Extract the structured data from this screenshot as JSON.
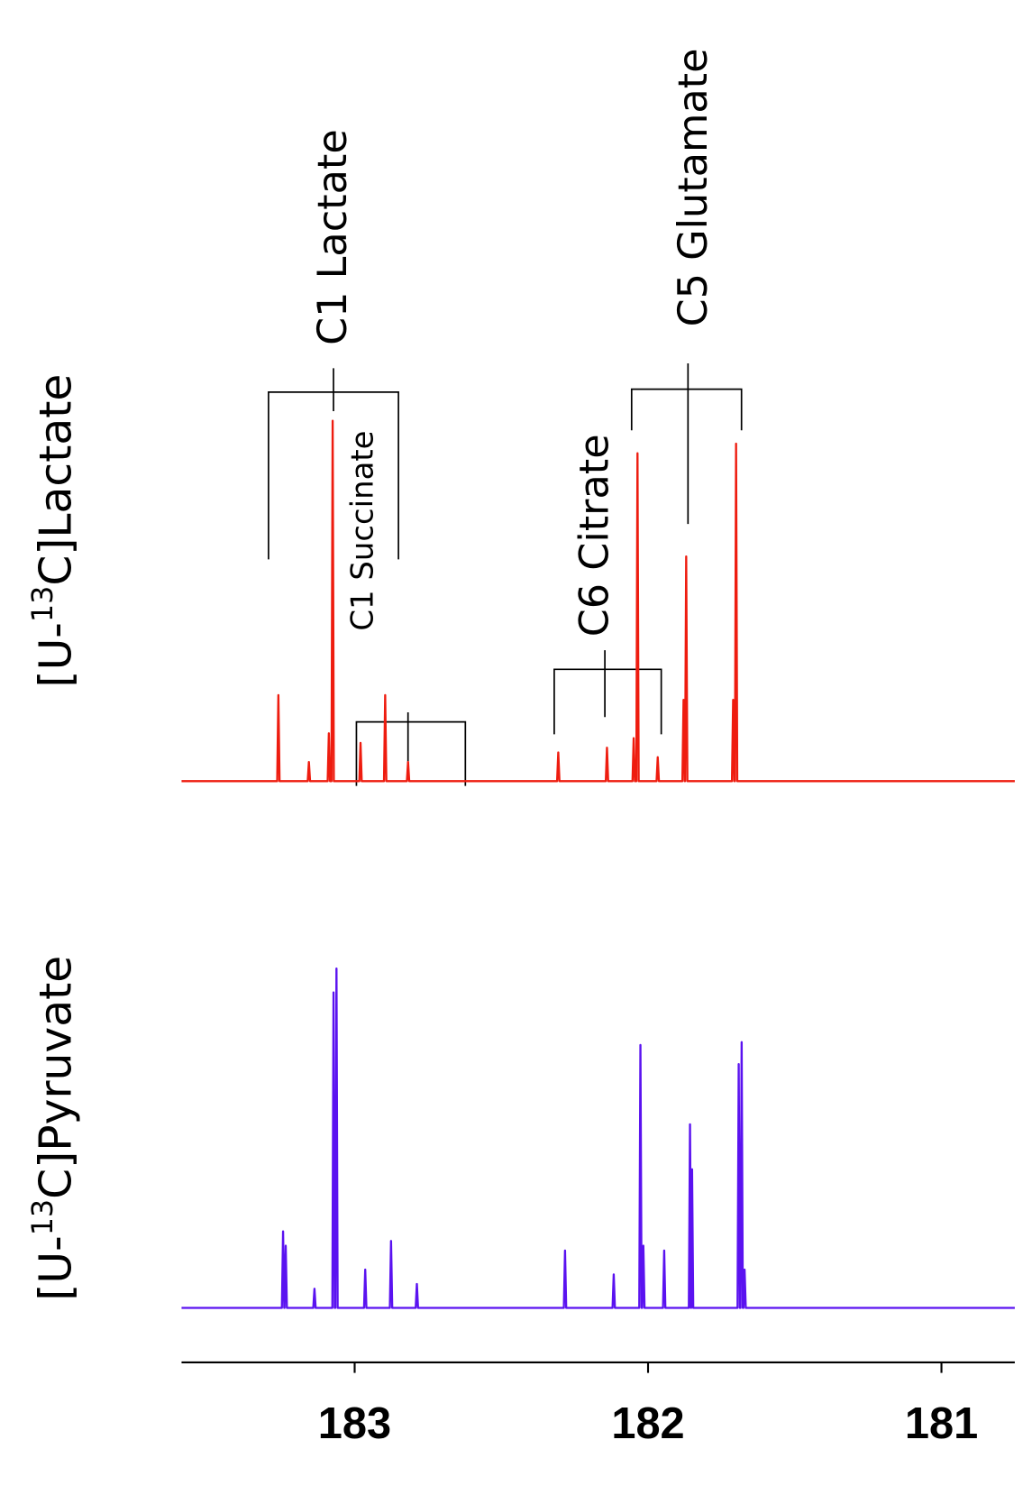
{
  "chart_data": [
    {
      "type": "line",
      "ylabel": [
        "[U-",
        "13",
        "C]Lactate"
      ],
      "color": "#ee1c0f",
      "annotations": [
        "C1 Lactate",
        "C1 Succinate",
        "C6 Citrate",
        "C5 Glutamate"
      ],
      "xlim": [
        183.59,
        180.75
      ],
      "ylim": [
        0,
        400
      ],
      "x": [
        183.59,
        183.264,
        183.26,
        183.256,
        183.16,
        183.156,
        183.152,
        183.092,
        183.088,
        183.084,
        183.079,
        183.075,
        183.071,
        182.984,
        182.98,
        182.976,
        182.9,
        182.896,
        182.892,
        182.822,
        182.818,
        182.814,
        182.31,
        182.306,
        182.302,
        182.144,
        182.14,
        182.136,
        182.053,
        182.049,
        182.045,
        182.04,
        182.036,
        182.032,
        181.971,
        181.967,
        181.963,
        181.883,
        181.879,
        181.875,
        181.874,
        181.87,
        181.866,
        181.714,
        181.71,
        181.706,
        181.704,
        181.7,
        181.696,
        180.75
      ],
      "values": [
        0,
        0,
        90,
        0,
        0,
        20,
        0,
        0,
        50,
        0,
        0,
        377,
        0,
        0,
        40,
        0,
        0,
        90,
        0,
        0,
        20,
        0,
        0,
        30,
        0,
        0,
        35,
        0,
        0,
        45,
        0,
        0,
        343,
        0,
        0,
        25,
        0,
        0,
        85,
        0,
        0,
        235,
        0,
        0,
        85,
        0,
        0,
        353,
        0,
        0
      ]
    },
    {
      "type": "line",
      "ylabel": [
        "[U-",
        "13",
        "C]Pyruvate"
      ],
      "color": "#5a12f0",
      "xlim": [
        183.59,
        180.75
      ],
      "ylim": [
        0,
        400
      ],
      "xticks": [
        183,
        182,
        181
      ],
      "x": [
        183.59,
        183.248,
        183.244,
        183.24,
        183.239,
        183.235,
        183.231,
        183.141,
        183.137,
        183.133,
        183.076,
        183.072,
        183.068,
        183.066,
        183.062,
        183.058,
        182.968,
        182.964,
        182.96,
        182.88,
        182.876,
        182.872,
        182.792,
        182.788,
        182.784,
        182.287,
        182.283,
        182.279,
        182.121,
        182.117,
        182.113,
        182.03,
        182.026,
        182.022,
        182.02,
        182.016,
        182.012,
        181.949,
        181.945,
        181.941,
        181.861,
        181.857,
        181.853,
        181.854,
        181.85,
        181.846,
        181.695,
        181.691,
        181.687,
        181.685,
        181.681,
        181.677,
        181.675,
        181.671,
        181.667,
        180.75
      ],
      "values": [
        0,
        0,
        80,
        0,
        0,
        65,
        0,
        0,
        20,
        0,
        0,
        330,
        0,
        0,
        355,
        0,
        0,
        40,
        0,
        0,
        70,
        0,
        0,
        25,
        0,
        0,
        60,
        0,
        0,
        35,
        0,
        0,
        275,
        0,
        0,
        65,
        0,
        0,
        60,
        0,
        0,
        192,
        0,
        0,
        145,
        0,
        0,
        255,
        0,
        0,
        278,
        0,
        0,
        40,
        0,
        0
      ]
    }
  ]
}
